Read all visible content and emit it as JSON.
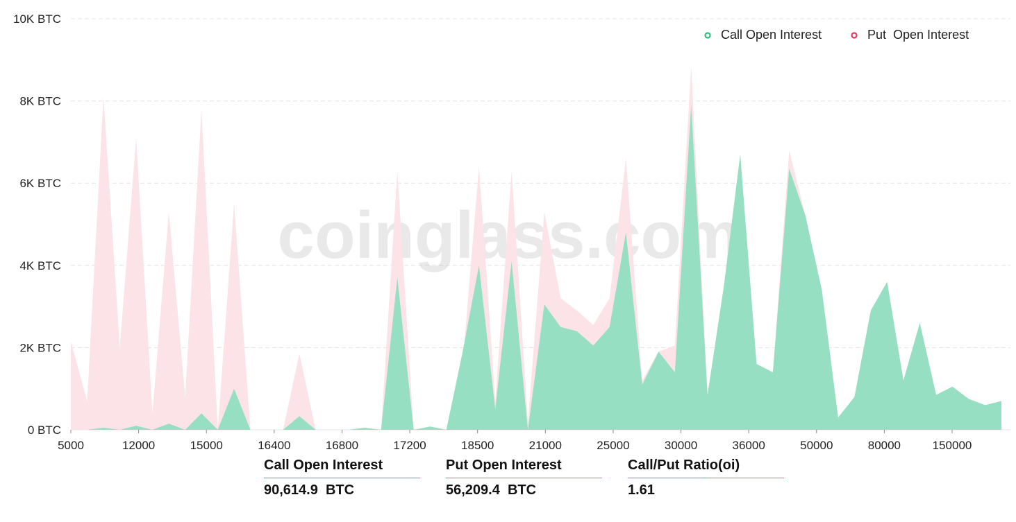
{
  "watermark": "coinglass.com",
  "colors": {
    "call": "#96dfc2",
    "call_dot": "#2fbf7f",
    "put": "#fbe3e7",
    "put_dot": "#e0395b",
    "grid": "#e4e4e4",
    "ratio_line": "#e07a8d"
  },
  "chart_data": {
    "type": "area",
    "y_unit": "BTC",
    "ylim": [
      0,
      10000
    ],
    "y_ticks": [
      "0 BTC",
      "2K BTC",
      "4K BTC",
      "6K BTC",
      "8K BTC",
      "10K BTC"
    ],
    "x_tick_labels": [
      "5000",
      "12000",
      "15000",
      "16400",
      "16800",
      "17200",
      "18500",
      "21000",
      "25000",
      "30000",
      "36000",
      "50000",
      "80000",
      "150000"
    ],
    "legend_position": "top-right",
    "grid": true,
    "series": [
      {
        "name": "Call Open Interest",
        "values": [
          0,
          0,
          50,
          0,
          100,
          0,
          150,
          0,
          400,
          0,
          1000,
          0,
          0,
          0,
          330,
          0,
          0,
          0,
          50,
          0,
          3700,
          0,
          80,
          0,
          1900,
          4000,
          500,
          4100,
          0,
          3050,
          2500,
          2400,
          2050,
          2500,
          4800,
          1100,
          1900,
          1400,
          7900,
          850,
          3500,
          6700,
          1600,
          1400,
          6350,
          5200,
          3400,
          300,
          800,
          2900,
          3600,
          1200,
          2600,
          850,
          1050,
          750,
          600,
          700
        ]
      },
      {
        "name": "Put  Open Interest",
        "values": [
          2150,
          700,
          8100,
          2000,
          7100,
          400,
          5300,
          800,
          7800,
          0,
          5500,
          0,
          0,
          0,
          1850,
          0,
          0,
          0,
          0,
          0,
          6300,
          0,
          0,
          0,
          1600,
          6400,
          700,
          6300,
          200,
          5300,
          3200,
          2900,
          2550,
          3200,
          6600,
          1200,
          1900,
          2050,
          8850,
          850,
          3500,
          6700,
          1600,
          1400,
          6800,
          5200,
          3400,
          300,
          800,
          2900,
          3600,
          1200,
          2600,
          850,
          1050,
          750,
          600,
          700
        ]
      }
    ]
  },
  "stats": {
    "call_label": "Call Open Interest",
    "call_value": "90,614.9  BTC",
    "put_label": "Put Open Interest",
    "put_value": "56,209.4  BTC",
    "ratio_label": "Call/Put Ratio(oi)",
    "ratio_value": "1.61"
  }
}
